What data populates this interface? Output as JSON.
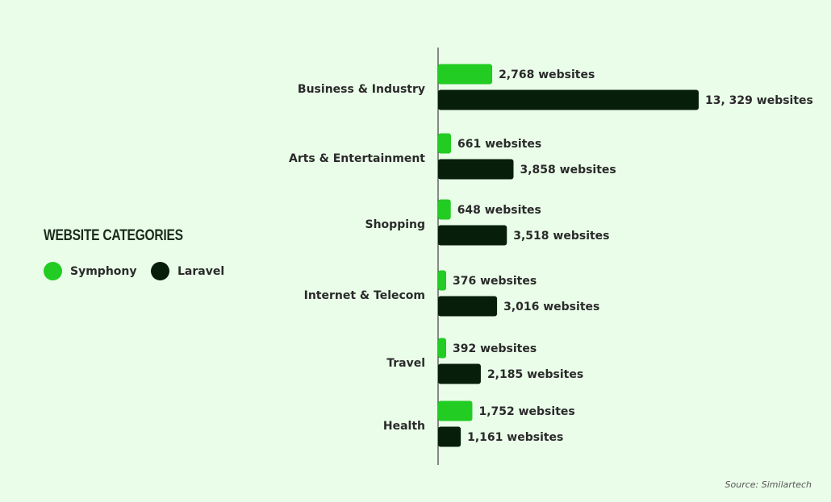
{
  "colors": {
    "background": "#eafde9",
    "symphony": "#22cc22",
    "laravel": "#071f0a",
    "text": "#2a2a2a"
  },
  "legend": {
    "title": "WEBSITE CATEGORIES",
    "items": [
      {
        "label": "Symphony"
      },
      {
        "label": "Laravel"
      }
    ]
  },
  "chart_data": {
    "type": "bar",
    "orientation": "horizontal",
    "categories": [
      "Business & Industry",
      "Arts & Entertainment",
      "Shopping",
      "Internet & Telecom",
      "Travel",
      "Health"
    ],
    "series": [
      {
        "name": "Symphony",
        "values": [
          2768,
          661,
          648,
          376,
          392,
          1752
        ],
        "labels": [
          "2,768 websites",
          "661 websites",
          "648 websites",
          "376 websites",
          "392 websites",
          "1,752 websites"
        ]
      },
      {
        "name": "Laravel",
        "values": [
          13329,
          3858,
          3518,
          3016,
          2185,
          1161
        ],
        "labels": [
          "13, 329 websites",
          "3,858 websites",
          "3,518 websites",
          "3,016 websites",
          "2,185 websites",
          "1,161 websites"
        ]
      }
    ],
    "legend_position": "left",
    "grid": false
  },
  "source": "Source: Similartech"
}
